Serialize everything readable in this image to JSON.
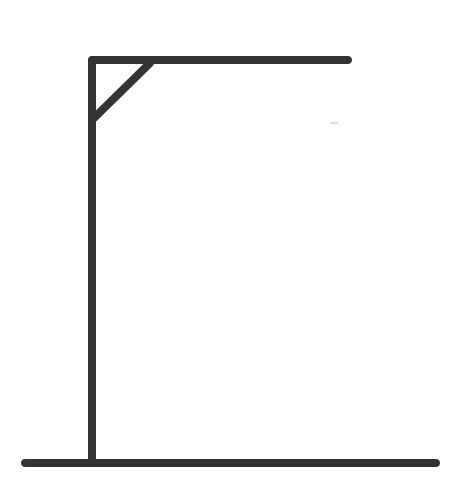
{
  "game": {
    "name": "hangman",
    "wrong_guesses": 0,
    "drawing_stage": "gallows-only"
  },
  "colors": {
    "background": "#ffffff",
    "stroke": "#333333",
    "artifact": "#9a9a9a"
  }
}
